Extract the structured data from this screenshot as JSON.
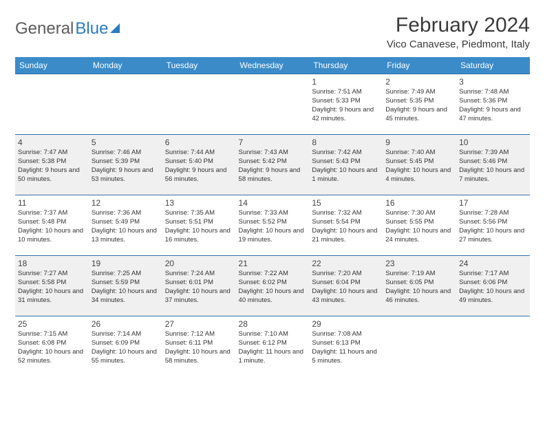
{
  "logo": {
    "part1": "General",
    "part2": "Blue"
  },
  "title": "February 2024",
  "location": "Vico Canavese, Piedmont, Italy",
  "columns": [
    "Sunday",
    "Monday",
    "Tuesday",
    "Wednesday",
    "Thursday",
    "Friday",
    "Saturday"
  ],
  "style": {
    "header_bg": "#3b8bc9",
    "header_text": "#ffffff",
    "row_border": "#2f6fa8",
    "alt_row_bg": "#f0f0f0",
    "body_text": "#333333",
    "title_fontsize": 30,
    "location_fontsize": 15,
    "th_fontsize": 12,
    "cell_fontsize": 9.5,
    "daynum_fontsize": 12
  },
  "weeks": [
    [
      null,
      null,
      null,
      null,
      {
        "num": "1",
        "sunrise": "Sunrise: 7:51 AM",
        "sunset": "Sunset: 5:33 PM",
        "daylight": "Daylight: 9 hours and 42 minutes."
      },
      {
        "num": "2",
        "sunrise": "Sunrise: 7:49 AM",
        "sunset": "Sunset: 5:35 PM",
        "daylight": "Daylight: 9 hours and 45 minutes."
      },
      {
        "num": "3",
        "sunrise": "Sunrise: 7:48 AM",
        "sunset": "Sunset: 5:36 PM",
        "daylight": "Daylight: 9 hours and 47 minutes."
      }
    ],
    [
      {
        "num": "4",
        "sunrise": "Sunrise: 7:47 AM",
        "sunset": "Sunset: 5:38 PM",
        "daylight": "Daylight: 9 hours and 50 minutes."
      },
      {
        "num": "5",
        "sunrise": "Sunrise: 7:46 AM",
        "sunset": "Sunset: 5:39 PM",
        "daylight": "Daylight: 9 hours and 53 minutes."
      },
      {
        "num": "6",
        "sunrise": "Sunrise: 7:44 AM",
        "sunset": "Sunset: 5:40 PM",
        "daylight": "Daylight: 9 hours and 56 minutes."
      },
      {
        "num": "7",
        "sunrise": "Sunrise: 7:43 AM",
        "sunset": "Sunset: 5:42 PM",
        "daylight": "Daylight: 9 hours and 58 minutes."
      },
      {
        "num": "8",
        "sunrise": "Sunrise: 7:42 AM",
        "sunset": "Sunset: 5:43 PM",
        "daylight": "Daylight: 10 hours and 1 minute."
      },
      {
        "num": "9",
        "sunrise": "Sunrise: 7:40 AM",
        "sunset": "Sunset: 5:45 PM",
        "daylight": "Daylight: 10 hours and 4 minutes."
      },
      {
        "num": "10",
        "sunrise": "Sunrise: 7:39 AM",
        "sunset": "Sunset: 5:46 PM",
        "daylight": "Daylight: 10 hours and 7 minutes."
      }
    ],
    [
      {
        "num": "11",
        "sunrise": "Sunrise: 7:37 AM",
        "sunset": "Sunset: 5:48 PM",
        "daylight": "Daylight: 10 hours and 10 minutes."
      },
      {
        "num": "12",
        "sunrise": "Sunrise: 7:36 AM",
        "sunset": "Sunset: 5:49 PM",
        "daylight": "Daylight: 10 hours and 13 minutes."
      },
      {
        "num": "13",
        "sunrise": "Sunrise: 7:35 AM",
        "sunset": "Sunset: 5:51 PM",
        "daylight": "Daylight: 10 hours and 16 minutes."
      },
      {
        "num": "14",
        "sunrise": "Sunrise: 7:33 AM",
        "sunset": "Sunset: 5:52 PM",
        "daylight": "Daylight: 10 hours and 19 minutes."
      },
      {
        "num": "15",
        "sunrise": "Sunrise: 7:32 AM",
        "sunset": "Sunset: 5:54 PM",
        "daylight": "Daylight: 10 hours and 21 minutes."
      },
      {
        "num": "16",
        "sunrise": "Sunrise: 7:30 AM",
        "sunset": "Sunset: 5:55 PM",
        "daylight": "Daylight: 10 hours and 24 minutes."
      },
      {
        "num": "17",
        "sunrise": "Sunrise: 7:28 AM",
        "sunset": "Sunset: 5:56 PM",
        "daylight": "Daylight: 10 hours and 27 minutes."
      }
    ],
    [
      {
        "num": "18",
        "sunrise": "Sunrise: 7:27 AM",
        "sunset": "Sunset: 5:58 PM",
        "daylight": "Daylight: 10 hours and 31 minutes."
      },
      {
        "num": "19",
        "sunrise": "Sunrise: 7:25 AM",
        "sunset": "Sunset: 5:59 PM",
        "daylight": "Daylight: 10 hours and 34 minutes."
      },
      {
        "num": "20",
        "sunrise": "Sunrise: 7:24 AM",
        "sunset": "Sunset: 6:01 PM",
        "daylight": "Daylight: 10 hours and 37 minutes."
      },
      {
        "num": "21",
        "sunrise": "Sunrise: 7:22 AM",
        "sunset": "Sunset: 6:02 PM",
        "daylight": "Daylight: 10 hours and 40 minutes."
      },
      {
        "num": "22",
        "sunrise": "Sunrise: 7:20 AM",
        "sunset": "Sunset: 6:04 PM",
        "daylight": "Daylight: 10 hours and 43 minutes."
      },
      {
        "num": "23",
        "sunrise": "Sunrise: 7:19 AM",
        "sunset": "Sunset: 6:05 PM",
        "daylight": "Daylight: 10 hours and 46 minutes."
      },
      {
        "num": "24",
        "sunrise": "Sunrise: 7:17 AM",
        "sunset": "Sunset: 6:06 PM",
        "daylight": "Daylight: 10 hours and 49 minutes."
      }
    ],
    [
      {
        "num": "25",
        "sunrise": "Sunrise: 7:15 AM",
        "sunset": "Sunset: 6:08 PM",
        "daylight": "Daylight: 10 hours and 52 minutes."
      },
      {
        "num": "26",
        "sunrise": "Sunrise: 7:14 AM",
        "sunset": "Sunset: 6:09 PM",
        "daylight": "Daylight: 10 hours and 55 minutes."
      },
      {
        "num": "27",
        "sunrise": "Sunrise: 7:12 AM",
        "sunset": "Sunset: 6:11 PM",
        "daylight": "Daylight: 10 hours and 58 minutes."
      },
      {
        "num": "28",
        "sunrise": "Sunrise: 7:10 AM",
        "sunset": "Sunset: 6:12 PM",
        "daylight": "Daylight: 11 hours and 1 minute."
      },
      {
        "num": "29",
        "sunrise": "Sunrise: 7:08 AM",
        "sunset": "Sunset: 6:13 PM",
        "daylight": "Daylight: 11 hours and 5 minutes."
      },
      null,
      null
    ]
  ]
}
